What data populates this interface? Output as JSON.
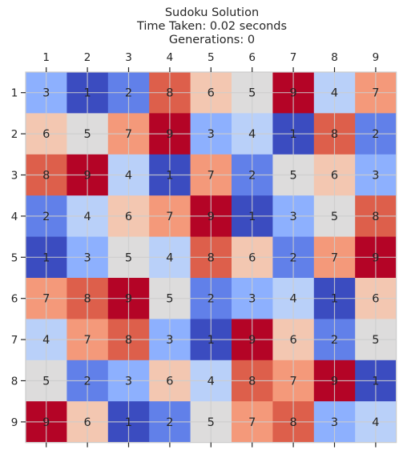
{
  "chart_data": {
    "type": "heatmap",
    "title_lines": [
      "Sudoku Solution",
      "Time Taken: 0.02 seconds",
      "Generations: 0"
    ],
    "x_tick_labels": [
      "1",
      "2",
      "3",
      "4",
      "5",
      "6",
      "7",
      "8",
      "9"
    ],
    "y_tick_labels": [
      "1",
      "2",
      "3",
      "4",
      "5",
      "6",
      "7",
      "8",
      "9"
    ],
    "xaxis_position": "top",
    "colormap": "coolwarm",
    "color_range": [
      1,
      9
    ],
    "grid": true,
    "values": [
      [
        3,
        1,
        2,
        8,
        6,
        5,
        9,
        4,
        7
      ],
      [
        6,
        5,
        7,
        9,
        3,
        4,
        1,
        8,
        2
      ],
      [
        8,
        9,
        4,
        1,
        7,
        2,
        5,
        6,
        3
      ],
      [
        2,
        4,
        6,
        7,
        9,
        1,
        3,
        5,
        8
      ],
      [
        1,
        3,
        5,
        4,
        8,
        6,
        2,
        7,
        9
      ],
      [
        7,
        8,
        9,
        5,
        2,
        3,
        4,
        1,
        6
      ],
      [
        4,
        7,
        8,
        3,
        1,
        9,
        6,
        2,
        5
      ],
      [
        5,
        2,
        3,
        6,
        4,
        8,
        7,
        9,
        1
      ],
      [
        9,
        6,
        1,
        2,
        5,
        7,
        8,
        3,
        4
      ]
    ],
    "value_colors": {
      "1": "#3b4cc0",
      "2": "#6180e9",
      "3": "#8db0fe",
      "4": "#b9d0f9",
      "5": "#dddcdc",
      "6": "#f3c7b1",
      "7": "#f4997a",
      "8": "#dd5f4b",
      "9": "#b40426"
    }
  }
}
